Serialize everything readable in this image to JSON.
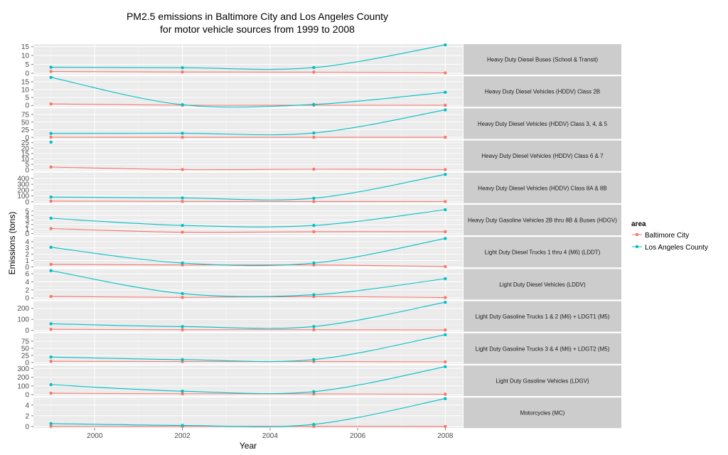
{
  "chart_data": {
    "type": "line",
    "title": "PM2.5 emissions in Baltimore City and Los Angeles County",
    "subtitle": "for motor vehicle sources from 1999 to 2008",
    "xlabel": "Year",
    "ylabel": "Emissions (tons)",
    "x": [
      1999,
      2002,
      2005,
      2008
    ],
    "xlim": [
      1998.6,
      2008.4
    ],
    "x_ticks": [
      2000,
      2002,
      2004,
      2006,
      2008
    ],
    "grid": true,
    "panel_background": "#ebebeb",
    "strip_background": "#cccccc",
    "legend": {
      "title": "area",
      "position": "right",
      "entries": [
        "Baltimore City",
        "Los Angeles County"
      ]
    },
    "series_colors": {
      "Baltimore City": "#f8766d",
      "Los Angeles County": "#00bfc4"
    },
    "facets": [
      {
        "label": "Heavy Duty Diesel Buses (School & Transit)",
        "ylim": [
          -0.8,
          16.5
        ],
        "yticks": [
          0,
          5,
          10,
          15
        ],
        "baltimore": [
          1.0,
          0.7,
          0.6,
          0.2
        ],
        "la": [
          3.4,
          3.1,
          3.2,
          16.0
        ]
      },
      {
        "label": "Heavy Duty Diesel Vehicles (HDDV) Class 2B",
        "ylim": [
          -0.9,
          18.5
        ],
        "yticks": [
          0,
          5,
          10,
          15
        ],
        "baltimore": [
          0.9,
          0.1,
          0.1,
          0.1
        ],
        "la": [
          17.8,
          0.4,
          0.6,
          8.3
        ]
      },
      {
        "label": "Heavy Duty Diesel Vehicles (HDDV) Class 3, 4, & 5",
        "ylim": [
          -5,
          95
        ],
        "yticks": [
          0,
          25,
          50,
          75
        ],
        "baltimore": [
          0.5,
          0.3,
          0.4,
          0.3
        ],
        "la": [
          13.0,
          13.5,
          14.3,
          90.0
        ]
      },
      {
        "label": "Heavy Duty Diesel Vehicles (HDDV) Class 6 & 7",
        "ylim": [
          -1.2,
          27
        ],
        "yticks": [
          0,
          5,
          10,
          15,
          20,
          25
        ],
        "baltimore": [
          2.5,
          0.2,
          0.5,
          0.2
        ],
        "la": [
          25.5,
          null,
          null,
          null
        ]
      },
      {
        "label": "Heavy Duty Diesel Vehicles (HDDV) Class 8A & 8B",
        "ylim": [
          -25,
          500
        ],
        "yticks": [
          0,
          100,
          200,
          300,
          400
        ],
        "baltimore": [
          10.0,
          5.0,
          4.0,
          3.0
        ],
        "la": [
          80.0,
          65.0,
          60.0,
          470.0
        ]
      },
      {
        "label": "Heavy Duty Gasoline Vehicles 2B thru 8B & Buses (HDGV)",
        "ylim": [
          -0.4,
          6.4
        ],
        "yticks": [
          0,
          1,
          2,
          3,
          4,
          5
        ],
        "baltimore": [
          1.1,
          0.3,
          0.4,
          0.4
        ],
        "la": [
          3.4,
          1.8,
          1.8,
          5.3
        ]
      },
      {
        "label": "Light Duty Diesel Trucks 1 thru 4 (M6) (LDDT)",
        "ylim": [
          -0.1,
          4.75
        ],
        "yticks": [
          0,
          1,
          2,
          3,
          4
        ],
        "baltimore": [
          0.4,
          0.3,
          0.3,
          0.05
        ],
        "la": [
          3.1,
          0.6,
          0.6,
          4.5
        ]
      },
      {
        "label": "Light Duty Diesel Vehicles (LDDV)",
        "ylim": [
          -0.4,
          7.2
        ],
        "yticks": [
          0,
          2,
          4,
          6
        ],
        "baltimore": [
          0.4,
          0.15,
          0.35,
          0.1
        ],
        "la": [
          6.8,
          1.1,
          0.8,
          4.8
        ]
      },
      {
        "label": "Light Duty Gasoline Trucks 1 & 2 (M6) + LDGT1 (M5)",
        "ylim": [
          -12,
          265
        ],
        "yticks": [
          0,
          100,
          200
        ],
        "baltimore": [
          10.0,
          6.0,
          6.0,
          4.0
        ],
        "la": [
          60.0,
          35.0,
          35.0,
          255.0
        ]
      },
      {
        "label": "Light Duty Gasoline Trucks 3 & 4 (M6) + LDGT2 (M5)",
        "ylim": [
          -5,
          103
        ],
        "yticks": [
          0,
          25,
          50,
          75
        ],
        "baltimore": [
          4.0,
          3.0,
          3.0,
          2.0
        ],
        "la": [
          19.0,
          10.0,
          10.0,
          98.0
        ]
      },
      {
        "label": "Light Duty Gasoline Vehicles (LDGV)",
        "ylim": [
          -15,
          335
        ],
        "yticks": [
          0,
          100,
          200,
          300
        ],
        "baltimore": [
          17.0,
          10.0,
          9.0,
          5.0
        ],
        "la": [
          115.0,
          40.0,
          35.0,
          320.0
        ]
      },
      {
        "label": "Motorcycles (MC)",
        "ylim": [
          -0.3,
          5.4
        ],
        "yticks": [
          0,
          2,
          4
        ],
        "baltimore": [
          0.05,
          0.03,
          0.03,
          0.02
        ],
        "la": [
          0.55,
          0.2,
          0.4,
          5.2
        ]
      }
    ]
  }
}
